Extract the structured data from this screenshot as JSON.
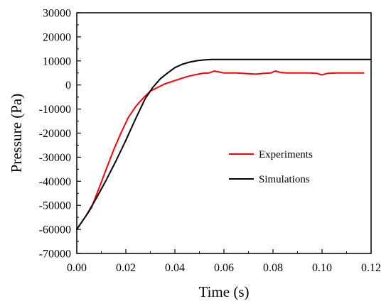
{
  "chart_data": {
    "type": "line",
    "title": "",
    "xlabel": "Time (s)",
    "ylabel": "Pressure (Pa)",
    "xlim": [
      0.0,
      0.12
    ],
    "ylim": [
      -70000,
      30000
    ],
    "x_ticks": [
      "0.00",
      "0.02",
      "0.04",
      "0.06",
      "0.08",
      "0.10",
      "0.12"
    ],
    "y_ticks": [
      "30000",
      "20000",
      "10000",
      "0",
      "-10000",
      "-20000",
      "-30000",
      "-40000",
      "-50000",
      "-60000",
      "-70000"
    ],
    "grid": false,
    "legend_position": "middle-right",
    "series": [
      {
        "name": "Experiments",
        "color": "#ff0000",
        "x": [
          0.0,
          0.003,
          0.006,
          0.009,
          0.012,
          0.015,
          0.018,
          0.021,
          0.024,
          0.027,
          0.03,
          0.033,
          0.036,
          0.039,
          0.042,
          0.045,
          0.048,
          0.051,
          0.054,
          0.056,
          0.058,
          0.06,
          0.065,
          0.07,
          0.073,
          0.076,
          0.079,
          0.081,
          0.083,
          0.086,
          0.09,
          0.095,
          0.098,
          0.1,
          0.102,
          0.106,
          0.11,
          0.114,
          0.117
        ],
        "y": [
          -60000,
          -55500,
          -51000,
          -43000,
          -35000,
          -27000,
          -20000,
          -13500,
          -9000,
          -5500,
          -2500,
          -1000,
          500,
          1500,
          2500,
          3500,
          4200,
          4800,
          5000,
          5800,
          5400,
          5000,
          5000,
          4700,
          4500,
          4800,
          5000,
          5800,
          5200,
          5000,
          5000,
          5000,
          4800,
          4200,
          4800,
          5000,
          5000,
          5000,
          5000
        ]
      },
      {
        "name": "Simulations",
        "color": "#000000",
        "x": [
          0.0,
          0.004,
          0.008,
          0.012,
          0.016,
          0.02,
          0.024,
          0.028,
          0.031,
          0.034,
          0.037,
          0.04,
          0.043,
          0.046,
          0.049,
          0.052,
          0.055,
          0.06,
          0.07,
          0.08,
          0.09,
          0.1,
          0.11,
          0.12
        ],
        "y": [
          -60000,
          -54000,
          -47000,
          -39500,
          -31500,
          -23000,
          -14000,
          -5500,
          -1000,
          2500,
          5000,
          7200,
          8600,
          9500,
          10100,
          10400,
          10600,
          10600,
          10600,
          10600,
          10600,
          10600,
          10600,
          10600
        ]
      }
    ]
  }
}
